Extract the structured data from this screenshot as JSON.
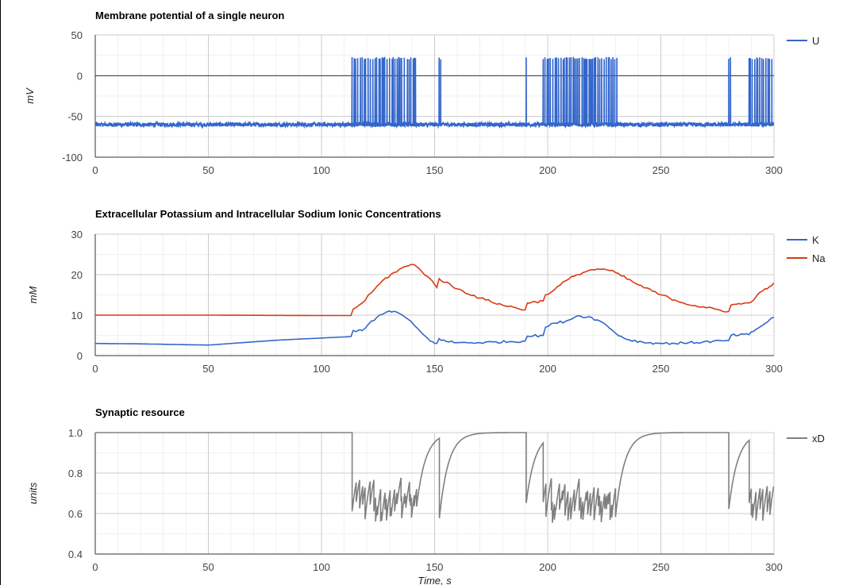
{
  "chart_data": [
    {
      "type": "line",
      "title": "Membrane potential of a single neuron",
      "ylabel": "mV",
      "xlabel": "",
      "xlim": [
        0,
        300
      ],
      "ylim": [
        -100,
        50
      ],
      "xticks": [
        0,
        50,
        100,
        150,
        200,
        250,
        300
      ],
      "yticks": [
        -100,
        -50,
        0,
        50
      ],
      "ytick_labels": [
        "-100",
        "-50",
        "0",
        "50"
      ],
      "zero_line": true,
      "grid": true,
      "legend_position": "right-top",
      "series": [
        {
          "name": "U",
          "color": "#3366cc",
          "baseline": -60,
          "spike_peak": 23,
          "spike_bursts": [
            [
              113.5,
              118
            ],
            [
              118,
              137
            ],
            [
              138,
              142
            ],
            [
              152,
              153
            ],
            [
              190.5,
              191.5
            ],
            [
              198,
              231
            ],
            [
              280,
              281
            ],
            [
              289,
              300
            ]
          ],
          "spike_count_estimate": 110
        }
      ]
    },
    {
      "type": "line",
      "title": "Extracellular Potassium and Intracellular Sodium Ionic Concentrations",
      "ylabel": "mM",
      "xlabel": "",
      "xlim": [
        0,
        300
      ],
      "ylim": [
        0,
        30
      ],
      "xticks": [
        0,
        50,
        100,
        150,
        200,
        250,
        300
      ],
      "yticks": [
        0,
        10,
        20,
        30
      ],
      "ytick_labels": [
        "0",
        "10",
        "20",
        "30"
      ],
      "grid": true,
      "legend_position": "right-top",
      "series": [
        {
          "name": "K",
          "color": "#3366cc",
          "x": [
            0,
            20,
            50,
            80,
            113,
            114,
            118,
            122,
            127,
            130,
            133,
            137,
            141,
            145,
            148,
            151,
            152,
            155,
            160,
            170,
            190,
            191,
            198,
            199,
            203,
            208,
            213,
            218,
            222,
            226,
            230,
            235,
            242,
            250,
            260,
            280,
            281,
            289,
            292,
            295,
            298,
            300
          ],
          "y": [
            3,
            2.9,
            2.6,
            3.8,
            4.7,
            6.2,
            6.2,
            8.5,
            10.2,
            11,
            10.8,
            9.5,
            7.5,
            5.2,
            3.6,
            3,
            4.2,
            3.5,
            3.2,
            3.2,
            3.6,
            4.8,
            5,
            7,
            8,
            8.5,
            9.8,
            9.6,
            8.8,
            7.5,
            5.5,
            4,
            3.3,
            3,
            3.1,
            3.7,
            5,
            5.2,
            6.5,
            7.5,
            8.8,
            9.4
          ]
        },
        {
          "name": "Na",
          "color": "#dc3912",
          "x": [
            0,
            50,
            100,
            113,
            114,
            118,
            122,
            127,
            132,
            137,
            141,
            142,
            148,
            151,
            152,
            160,
            170,
            180,
            190,
            191,
            198,
            199,
            203,
            208,
            213,
            218,
            222,
            226,
            230,
            240,
            250,
            260,
            270,
            280,
            281,
            289,
            292,
            295,
            298,
            300
          ],
          "y": [
            10,
            10,
            9.9,
            9.9,
            11.5,
            13,
            15.5,
            18.5,
            20.5,
            22,
            22.5,
            22,
            19,
            16.8,
            19,
            16.5,
            14.2,
            12.5,
            11.3,
            13,
            13.5,
            15,
            16.3,
            18.5,
            20,
            21,
            21.4,
            21.2,
            20.5,
            17.5,
            15,
            13,
            11.8,
            10.9,
            12.5,
            13,
            14.5,
            16,
            17,
            18
          ]
        }
      ]
    },
    {
      "type": "line",
      "title": "Synaptic resource",
      "ylabel": "units",
      "xlabel": "Time, s",
      "xlim": [
        0,
        300
      ],
      "ylim": [
        0.4,
        1.0
      ],
      "xticks": [
        0,
        50,
        100,
        150,
        200,
        250,
        300
      ],
      "yticks": [
        0.4,
        0.6,
        0.8,
        1.0
      ],
      "ytick_labels": [
        "0.4",
        "0.6",
        "0.8",
        "1.0"
      ],
      "grid": true,
      "legend_position": "right-top",
      "series": [
        {
          "name": "xD",
          "color": "#808080",
          "baseline": 1.0,
          "active_intervals": [
            [
              113.5,
              143
            ],
            [
              152,
              153
            ],
            [
              190.5,
              191.5
            ],
            [
              198,
              231
            ],
            [
              280,
              281
            ],
            [
              289,
              300
            ]
          ],
          "trough_min": 0.55,
          "recovery_tau_s": 4
        }
      ]
    }
  ]
}
